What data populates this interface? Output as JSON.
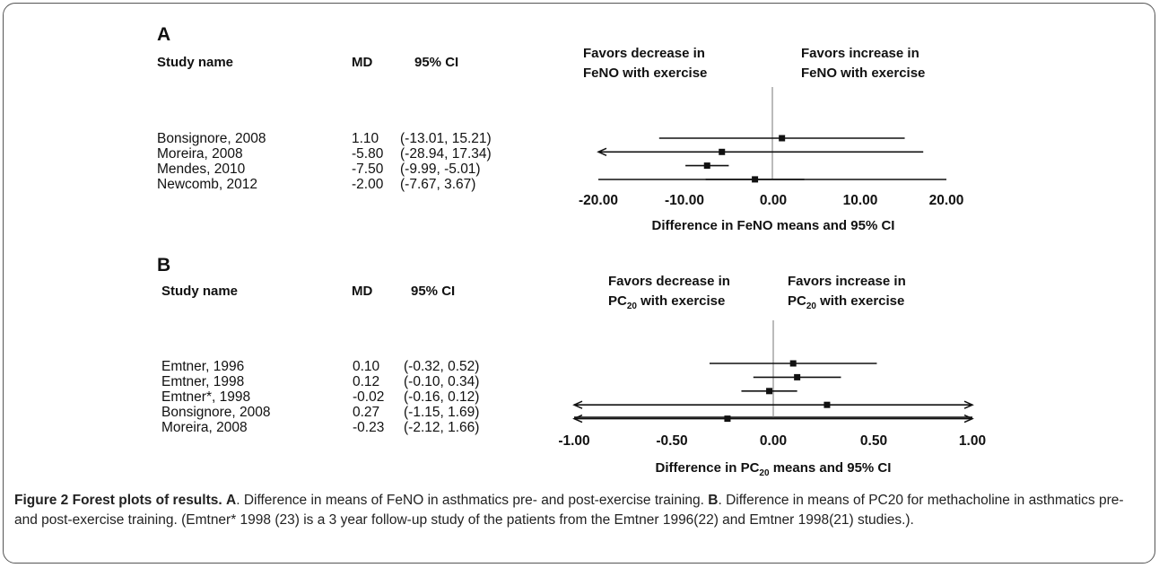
{
  "panels": [
    {
      "letter": "A",
      "header": {
        "study": "Study name",
        "md": "MD",
        "ci": "95% CI"
      },
      "favors_left": [
        "Favors decrease in",
        "FeNO with exercise"
      ],
      "favors_right": [
        "Favors increase in",
        "FeNO with exercise"
      ],
      "rows": [
        {
          "study": "Bonsignore, 2008",
          "md": "1.10",
          "ci": "(-13.01, 15.21)"
        },
        {
          "study": "Moreira, 2008",
          "md": "-5.80",
          "ci": "(-28.94, 17.34)"
        },
        {
          "study": "Mendes, 2010",
          "md": "-7.50",
          "ci": "(-9.99, -5.01)"
        },
        {
          "study": "Newcomb, 2012",
          "md": "-2.00",
          "ci": "(-7.67, 3.67)"
        }
      ],
      "axis_ticks": [
        "-20.00",
        "-10.00",
        "0.00",
        "10.00",
        "20.00"
      ],
      "axis_label": {
        "main": "Difference in FeNO means and 95% CI"
      }
    },
    {
      "letter": "B",
      "header": {
        "study": "Study name",
        "md": "MD",
        "ci": "95% CI"
      },
      "favors_left": [
        "Favors decrease in",
        "PC",
        "20",
        " with exercise"
      ],
      "favors_right": [
        "Favors increase in",
        "PC",
        "20",
        " with exercise"
      ],
      "rows": [
        {
          "study": "Emtner, 1996",
          "md": "0.10",
          "ci": "(-0.32, 0.52)"
        },
        {
          "study": "Emtner, 1998",
          "md": "0.12",
          "ci": "(-0.10, 0.34)"
        },
        {
          "study": "Emtner*, 1998",
          "md": "-0.02",
          "ci": "(-0.16, 0.12)"
        },
        {
          "study": "Bonsignore, 2008",
          "md": "0.27",
          "ci": "(-1.15, 1.69)"
        },
        {
          "study": "Moreira, 2008",
          "md": "-0.23",
          "ci": "(-2.12, 1.66)"
        }
      ],
      "axis_ticks": [
        "-1.00",
        "-0.50",
        "0.00",
        "0.50",
        "1.00"
      ],
      "axis_label": {
        "pre": "Difference in PC",
        "sub": "20",
        "post": " means and 95% CI"
      }
    }
  ],
  "caption": {
    "fig_label": "Figure 2 Forest plots of results.",
    "a_label": "A",
    "a_text": ". Difference in means of FeNO in asthmatics pre- and post-exercise training. ",
    "b_label": "B",
    "b_text": ". Difference in means of PC20 for methacholine in asthmatics pre- and post-exercise training. (Emtner* 1998 (23) is a 3 year follow-up study of the patients from the Emtner 1996(22) and Emtner 1998(21) studies.)."
  },
  "chart_data": [
    {
      "type": "forest",
      "xlabel": "Difference in FeNO means and 95% CI",
      "xlim": [
        -20,
        20
      ],
      "grid": false,
      "reference_line": 0,
      "studies": [
        "Bonsignore, 2008",
        "Moreira, 2008",
        "Mendes, 2010",
        "Newcomb, 2012"
      ],
      "md": [
        1.1,
        -5.8,
        -7.5,
        -2.0
      ],
      "ci_low": [
        -13.01,
        -28.94,
        -9.99,
        -7.67
      ],
      "ci_high": [
        15.21,
        17.34,
        -5.01,
        3.67
      ]
    },
    {
      "type": "forest",
      "xlabel": "Difference in PC20 means and 95% CI",
      "xlim": [
        -1,
        1
      ],
      "grid": false,
      "reference_line": 0,
      "studies": [
        "Emtner, 1996",
        "Emtner, 1998",
        "Emtner*, 1998",
        "Bonsignore, 2008",
        "Moreira, 2008"
      ],
      "md": [
        0.1,
        0.12,
        -0.02,
        0.27,
        -0.23
      ],
      "ci_low": [
        -0.32,
        -0.1,
        -0.16,
        -1.15,
        -2.12
      ],
      "ci_high": [
        0.52,
        0.34,
        0.12,
        1.69,
        1.66
      ]
    }
  ]
}
